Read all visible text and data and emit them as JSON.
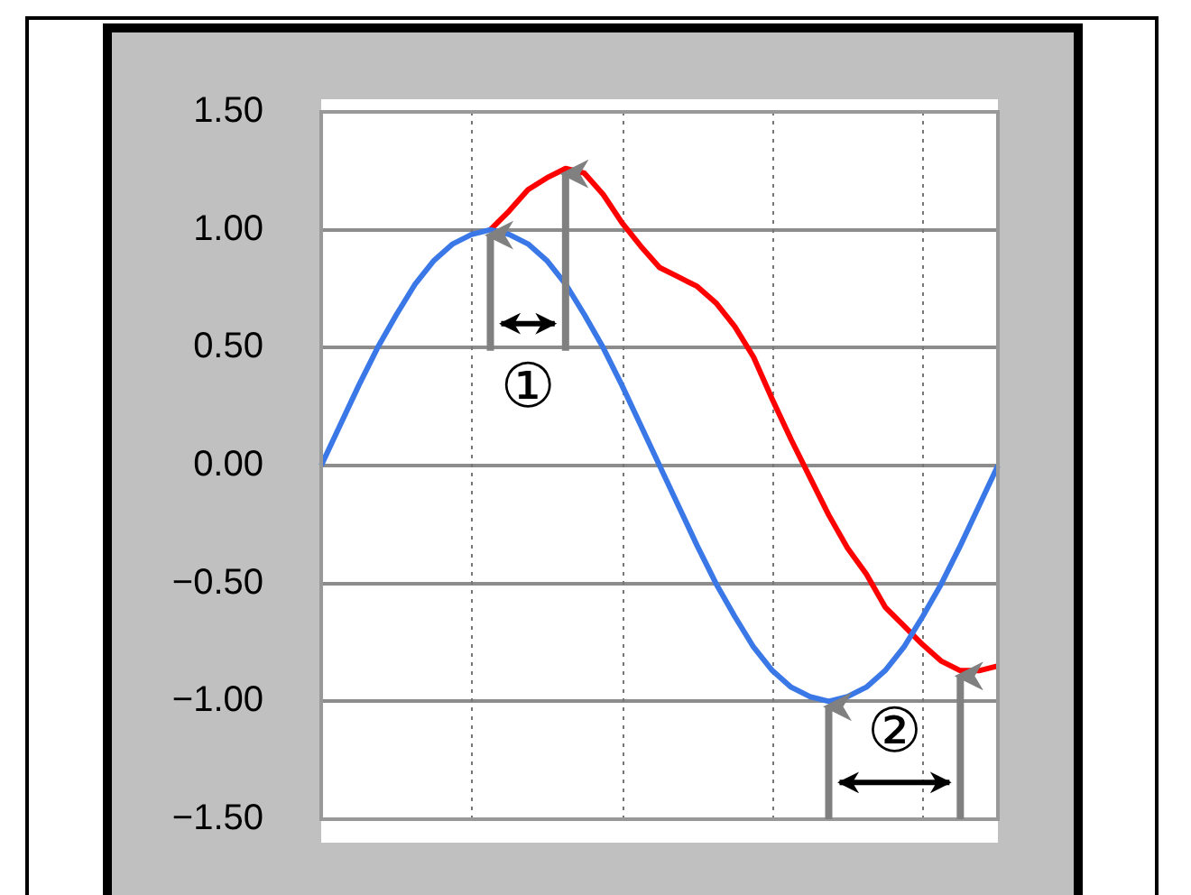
{
  "chart_data": {
    "type": "line",
    "categories": [
      null,
      null,
      null,
      null,
      null,
      null,
      null,
      null,
      null,
      null,
      null,
      null,
      null,
      null,
      null,
      null,
      null,
      null,
      null,
      null,
      null,
      null,
      null,
      null,
      null,
      null,
      null,
      null,
      null,
      null,
      null,
      null,
      null,
      null,
      null,
      null,
      null
    ],
    "ylim": [
      -1.5,
      1.5
    ],
    "yticks": [
      {
        "value": 1.5,
        "label": "1.50"
      },
      {
        "value": 1,
        "label": "1.00"
      },
      {
        "value": 0.5,
        "label": "0.50"
      },
      {
        "value": 0,
        "label": "0.00"
      },
      {
        "value": -0.5,
        "label": "−0.50"
      },
      {
        "value": -1,
        "label": "−1.00"
      },
      {
        "value": -1.5,
        "label": "−1.50"
      }
    ],
    "tick_labels": "y",
    "grid": true,
    "legend": false,
    "marker": "none",
    "series": [
      {
        "color": "#3b78e7",
        "values": [
          0,
          0.17,
          0.34,
          0.5,
          0.64,
          0.77,
          0.87,
          0.94,
          0.98,
          1,
          0.98,
          0.94,
          0.87,
          0.77,
          0.64,
          0.5,
          0.34,
          0.17,
          0,
          -0.17,
          -0.34,
          -0.5,
          -0.64,
          -0.77,
          -0.87,
          -0.94,
          -0.98,
          -1,
          -0.98,
          -0.94,
          -0.87,
          -0.77,
          -0.64,
          -0.5,
          -0.34,
          -0.17,
          0
        ]
      },
      {
        "color": "#ff0000",
        "values": [
          null,
          null,
          null,
          null,
          null,
          null,
          null,
          null,
          null,
          1,
          1.08,
          1.17,
          1.22,
          1.26,
          1.24,
          1.15,
          1.03,
          0.93,
          0.84,
          0.8,
          0.76,
          0.69,
          0.59,
          0.46,
          0.28,
          0.11,
          -0.05,
          -0.21,
          -0.35,
          -0.46,
          -0.6,
          -0.68,
          -0.76,
          -0.83,
          -0.87,
          -0.87,
          -0.85
        ]
      }
    ],
    "annotations": [
      "①",
      "②"
    ]
  }
}
